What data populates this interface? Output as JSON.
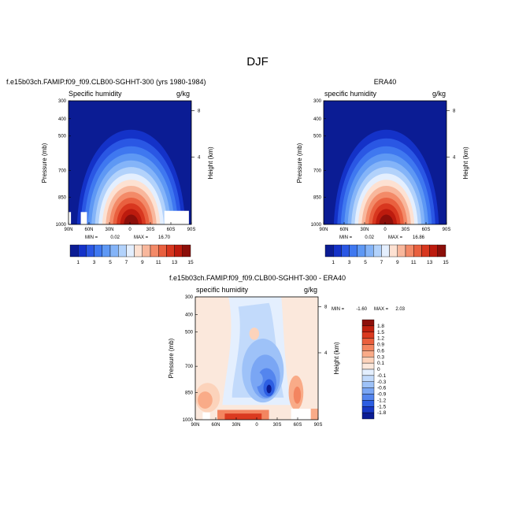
{
  "page_title": "DJF",
  "chart_data": [
    {
      "type": "heatmap",
      "panel": "model",
      "title": "f.e15b03ch.FAMIP.f09_f09.CLB00-SGHHT-300 (yrs 1980-1984)",
      "field_label": "Specific humidity",
      "units": "g/kg",
      "ylabel": "Pressure (mb)",
      "ylabel_right": "Height (km)",
      "x_ticks": [
        "90N",
        "60N",
        "30N",
        "0",
        "30S",
        "60S",
        "90S"
      ],
      "y_ticks": [
        "300",
        "400",
        "500",
        "700",
        "850",
        "1000"
      ],
      "right_ticks": [
        "8",
        "4"
      ],
      "xlim": [
        90,
        -90
      ],
      "ylim": [
        1000,
        300
      ],
      "stats": {
        "min": "0.02",
        "max": "16.70"
      },
      "colorbar_labels": [
        "1",
        "3",
        "5",
        "7",
        "9",
        "11",
        "13",
        "15"
      ],
      "colorbar_colors": [
        "#0b1c94",
        "#1432c8",
        "#2a57e4",
        "#3f78f0",
        "#5e98f4",
        "#84b4f8",
        "#b2d2fb",
        "#e4effe",
        "#fde1d2",
        "#f8b79c",
        "#f38a68",
        "#e9603f",
        "#d8371f",
        "#bd1b0e",
        "#8c0f0a"
      ]
    },
    {
      "type": "heatmap",
      "panel": "obs",
      "title": "ERA40",
      "field_label": "specific humidity",
      "units": "g/kg",
      "ylabel": "Pressure (mb)",
      "ylabel_right": "Height (km)",
      "x_ticks": [
        "90N",
        "60N",
        "30N",
        "0",
        "30S",
        "60S",
        "90S"
      ],
      "y_ticks": [
        "300",
        "400",
        "500",
        "700",
        "850",
        "1000"
      ],
      "right_ticks": [
        "8",
        "4"
      ],
      "xlim": [
        90,
        -90
      ],
      "ylim": [
        1000,
        300
      ],
      "stats": {
        "min": "0.02",
        "max": "16.86"
      },
      "colorbar_labels": [
        "1",
        "3",
        "5",
        "7",
        "9",
        "11",
        "13",
        "15"
      ],
      "colorbar_colors": [
        "#0b1c94",
        "#1432c8",
        "#2a57e4",
        "#3f78f0",
        "#5e98f4",
        "#84b4f8",
        "#b2d2fb",
        "#e4effe",
        "#fde1d2",
        "#f8b79c",
        "#f38a68",
        "#e9603f",
        "#d8371f",
        "#bd1b0e",
        "#8c0f0a"
      ]
    },
    {
      "type": "heatmap",
      "panel": "difference",
      "title": "f.e15b03ch.FAMIP.f09_f09.CLB00-SGHHT-300 - ERA40",
      "field_label": "specific humidity",
      "units": "g/kg",
      "ylabel": "Pressure (mb)",
      "ylabel_right": "Height (km)",
      "x_ticks": [
        "90N",
        "60N",
        "30N",
        "0",
        "30S",
        "60S",
        "90S"
      ],
      "y_ticks": [
        "300",
        "400",
        "500",
        "700",
        "850",
        "1000"
      ],
      "right_ticks": [
        "8",
        "4"
      ],
      "xlim": [
        90,
        -90
      ],
      "ylim": [
        1000,
        300
      ],
      "stats": {
        "min": "-1.60",
        "max": "2.03"
      },
      "colorbar_labels": [
        "1.8",
        "1.5",
        "1.2",
        "0.9",
        "0.6",
        "0.3",
        "0.1",
        "0",
        "-0.1",
        "-0.3",
        "-0.6",
        "-0.9",
        "-1.2",
        "-1.5",
        "-1.8"
      ],
      "colorbar_colors": [
        "#8c0f0a",
        "#c0200f",
        "#da3a20",
        "#ea5f3d",
        "#f38560",
        "#f9ab88",
        "#fcd3bb",
        "#fbe8dc",
        "#e4effe",
        "#c2dafb",
        "#9ec2f8",
        "#7aa6f4",
        "#5485ee",
        "#2d5ee2",
        "#1738c4",
        "#0b1c94"
      ]
    }
  ]
}
